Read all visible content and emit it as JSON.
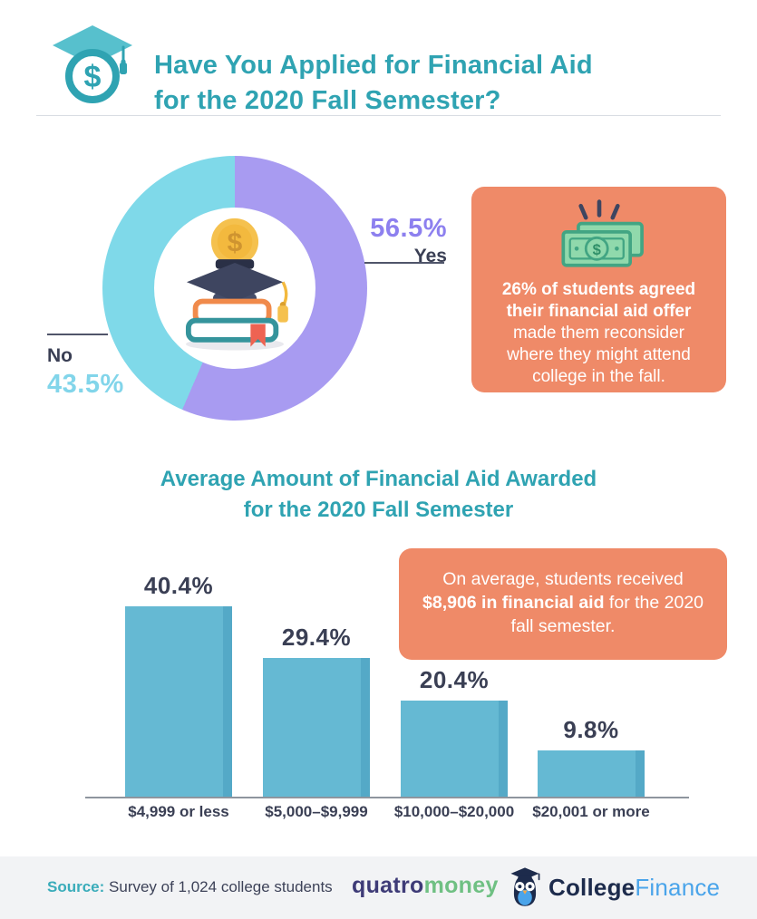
{
  "header": {
    "title_line1": "Have You Applied for Financial Aid",
    "title_line2": "for the 2020 Fall Semester?"
  },
  "donut": {
    "segments": [
      {
        "label": "Yes",
        "value": 56.5,
        "display": "56.5%",
        "color": "#a89bf1"
      },
      {
        "label": "No",
        "value": 43.5,
        "display": "43.5%",
        "color": "#7fd9e9"
      }
    ]
  },
  "callout_reconsider": {
    "bold_text": "26% of students agreed their financial aid offer",
    "regular_text": " made them reconsider where they might attend college in the fall."
  },
  "bar_section": {
    "title_line1": "Average Amount of Financial Aid Awarded",
    "title_line2": "for the 2020 Fall Semester"
  },
  "bar_chart": {
    "bars": [
      {
        "category": "$4,999 or less",
        "value": 40.4,
        "display": "40.4%"
      },
      {
        "category": "$5,000–$9,999",
        "value": 29.4,
        "display": "29.4%"
      },
      {
        "category": "$10,000–$20,000",
        "value": 20.4,
        "display": "20.4%"
      },
      {
        "category": "$20,001 or more",
        "value": 9.8,
        "display": "9.8%"
      }
    ]
  },
  "callout_average": {
    "pre_text": "On average, students received ",
    "bold_text": "$8,906 in financial aid",
    "post_text": " for the 2020 fall semester."
  },
  "footer": {
    "source_label": "Source:",
    "source_text": " Survey of 1,024 college students",
    "brand_quatro": "quatro",
    "brand_money": "money",
    "brand_college": "College",
    "brand_finance": "Finance"
  },
  "icons": {
    "header": "graduation-cap-coin-icon",
    "donut_center": "books-graduation-cap-coin-icon",
    "callout": "money-bills-icon",
    "footer_brand": "owl-icon"
  },
  "colors": {
    "teal": "#2fa3b2",
    "donut_purple": "#a89bf1",
    "donut_cyan": "#7fd9e9",
    "label_purple": "#8d80ef",
    "label_cyan": "#82d5ea",
    "navy_text": "#3a3f54",
    "callout_orange": "#ef8a68",
    "bar_blue": "#65b9d3",
    "bar_blue_edge": "#54a9c7",
    "footer_bg": "#f2f3f5",
    "quatro_navy": "#3e3b77",
    "money_green": "#6fc083",
    "college_navy": "#1d2b4c",
    "finance_blue": "#4aa4ea"
  },
  "chart_data": [
    {
      "type": "pie",
      "subtype": "donut",
      "title": "Have You Applied for Financial Aid for the 2020 Fall Semester?",
      "labels": [
        "Yes",
        "No"
      ],
      "values": [
        56.5,
        43.5
      ],
      "colors": [
        "#a89bf1",
        "#7fd9e9"
      ],
      "start_angle_deg": 0,
      "direction": "clockwise",
      "legend_position": "callout-labels"
    },
    {
      "type": "bar",
      "title": "Average Amount of Financial Aid Awarded for the 2020 Fall Semester",
      "categories": [
        "$4,999 or less",
        "$5,000–$9,999",
        "$10,000–$20,000",
        "$20,001 or more"
      ],
      "values": [
        40.4,
        29.4,
        20.4,
        9.8
      ],
      "value_labels": [
        "40.4%",
        "29.4%",
        "20.4%",
        "9.8%"
      ],
      "bar_color": "#65b9d3",
      "xlabel": "",
      "ylabel": "",
      "ylim": [
        0,
        45
      ],
      "grid": false,
      "annotations": [
        "26% of students agreed their financial aid offer made them reconsider where they might attend college in the fall.",
        "On average, students received $8,906 in financial aid for the 2020 fall semester."
      ]
    }
  ]
}
